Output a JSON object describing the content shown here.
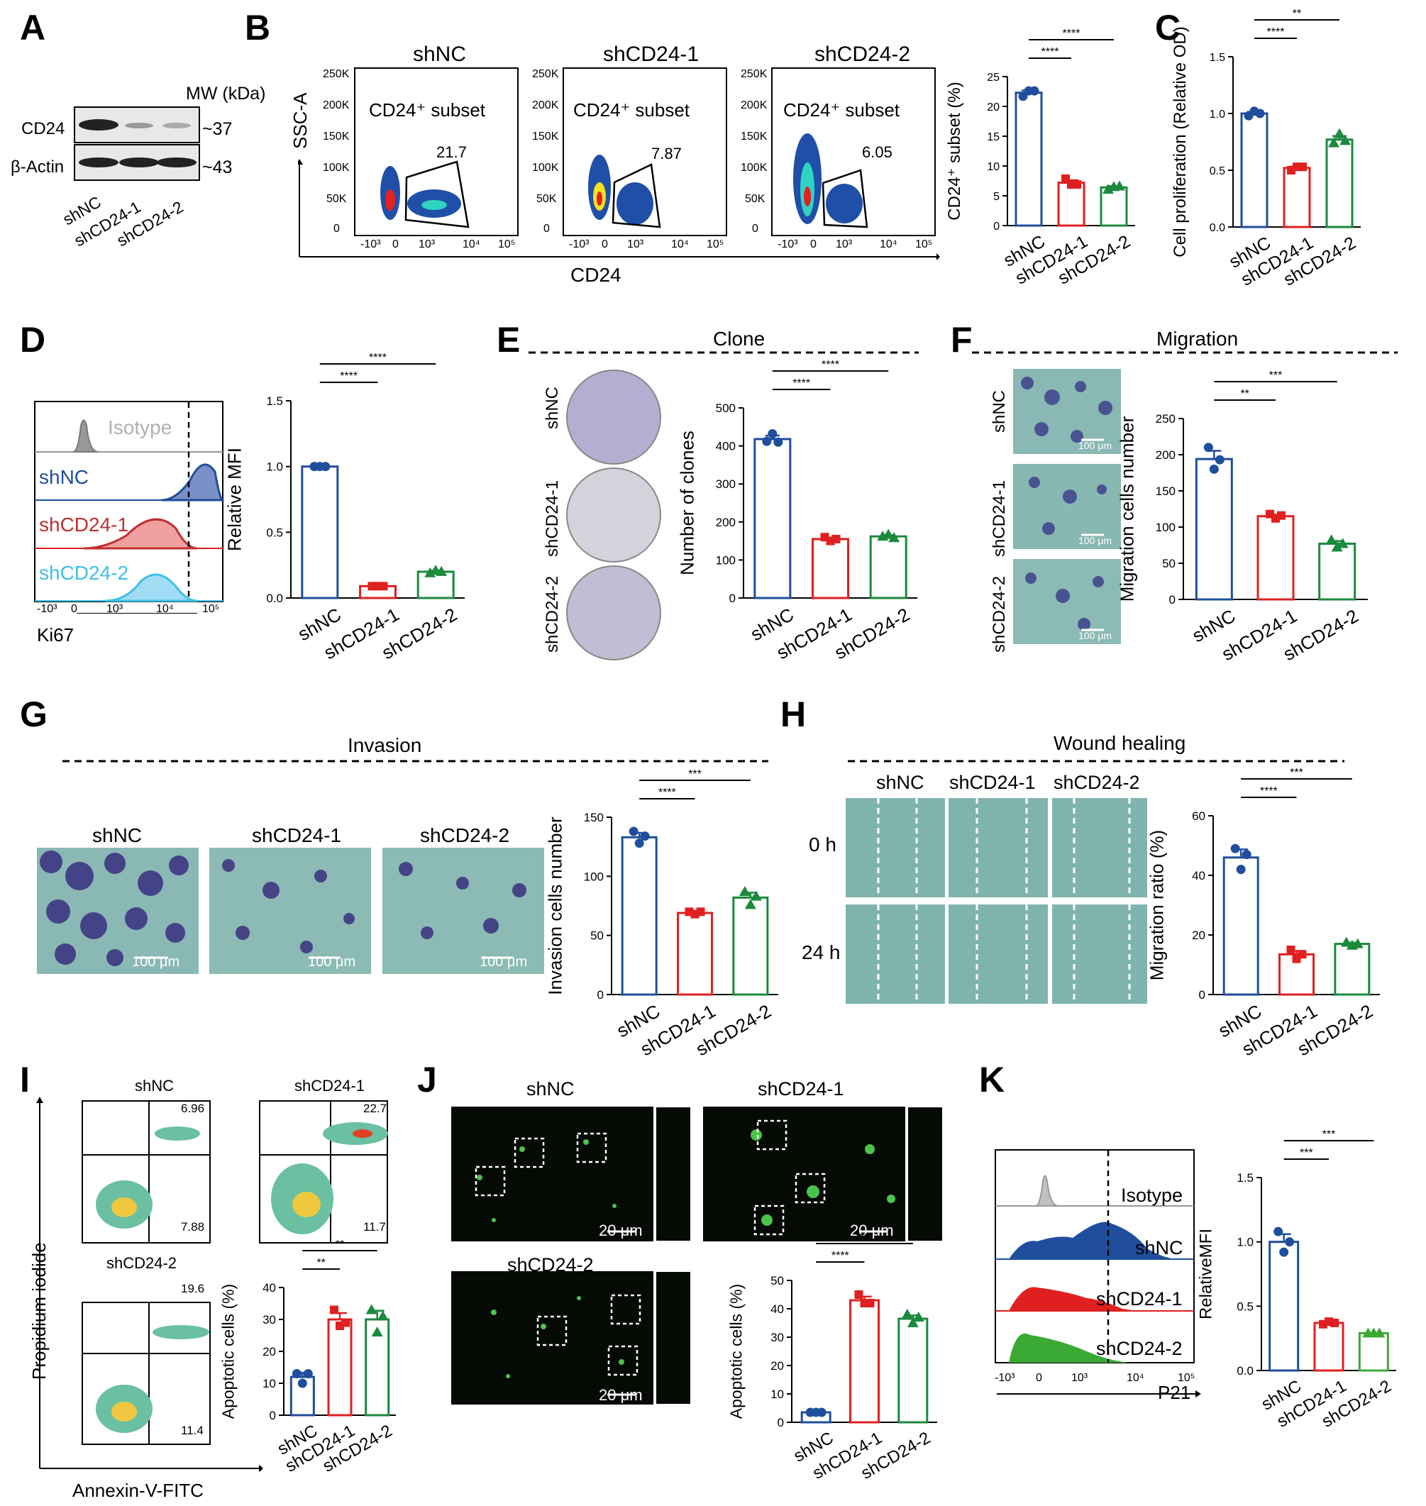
{
  "panels": {
    "A": {
      "letter": "A",
      "mw_label": "MW (kDa)",
      "rows": [
        {
          "name": "CD24",
          "mw": "~37"
        },
        {
          "name": "β-Actin",
          "mw": "~43"
        }
      ],
      "lanes": [
        "shNC",
        "shCD24-1",
        "shCD24-2"
      ]
    },
    "B": {
      "letter": "B",
      "plots": [
        {
          "title": "shNC",
          "gate": "CD24⁺ subset",
          "value": "21.7"
        },
        {
          "title": "shCD24-1",
          "gate": "CD24⁺ subset",
          "value": "7.87"
        },
        {
          "title": "shCD24-2",
          "gate": "CD24⁺ subset",
          "value": "6.05"
        }
      ],
      "y_axis": "SSC-A",
      "x_axis": "CD24",
      "y_ticks": [
        "250K",
        "200K",
        "150K",
        "100K",
        "50K",
        "0"
      ],
      "x_ticks": [
        "-10³",
        "0",
        "10³",
        "10⁴",
        "10⁵"
      ]
    },
    "C": {
      "letter": "C"
    },
    "D": {
      "letter": "D",
      "hist_labels": [
        "Isotype",
        "shNC",
        "shCD24-1",
        "shCD24-2"
      ],
      "x_axis": "Ki67",
      "x_ticks": [
        "-10³",
        "0",
        "10³",
        "10⁴",
        "10⁵"
      ]
    },
    "E": {
      "letter": "E",
      "header": "Clone",
      "row_labels": [
        "shNC",
        "shCD24-1",
        "shCD24-2"
      ]
    },
    "F": {
      "letter": "F",
      "header": "Migration",
      "row_labels": [
        "shNC",
        "shCD24-1",
        "shCD24-2"
      ],
      "scale": "100 μm"
    },
    "G": {
      "letter": "G",
      "header": "Invasion",
      "col_labels": [
        "shNC",
        "shCD24-1",
        "shCD24-2"
      ],
      "scale": "100 μm"
    },
    "H": {
      "letter": "H",
      "header": "Wound healing",
      "col_labels": [
        "shNC",
        "shCD24-1",
        "shCD24-2"
      ],
      "row_labels": [
        "0 h",
        "24 h"
      ]
    },
    "I": {
      "letter": "I",
      "plots": [
        {
          "title": "shNC",
          "ur": "6.96",
          "lr": "7.88"
        },
        {
          "title": "shCD24-1",
          "ur": "22.7",
          "lr": "11.7"
        },
        {
          "title": "shCD24-2",
          "ur": "19.6",
          "lr": "11.4"
        }
      ],
      "y_axis": "Propidium iodide",
      "x_axis": "Annexin-V-FITC"
    },
    "J": {
      "letter": "J",
      "titles": [
        "shNC",
        "shCD24-1",
        "shCD24-2"
      ],
      "scale": "20 μm"
    },
    "K": {
      "letter": "K",
      "hist_labels": [
        "Isotype",
        "shNC",
        "shCD24-1",
        "shCD24-2"
      ],
      "x_axis": "P21",
      "x_ticks": [
        "-10³",
        "0",
        "10³",
        "10⁴",
        "10⁵"
      ]
    }
  },
  "colors": {
    "shNC": "#1f4e9c",
    "shCD24-1": "#e02020",
    "shCD24-2": "#1a8a3c",
    "shCD24-2_K": "#3aaa35",
    "Isotype": "#999999"
  },
  "chart_data": [
    {
      "id": "B-bar",
      "type": "bar",
      "categories": [
        "shNC",
        "shCD24-1",
        "shCD24-2"
      ],
      "values": [
        22.3,
        7.2,
        6.4
      ],
      "ylabel": "CD24⁺ subset (%)",
      "ylim": [
        0,
        25
      ],
      "yticks": [
        0,
        5,
        10,
        15,
        20,
        25
      ],
      "points": [
        [
          21.7,
          22.6,
          22.6
        ],
        [
          7.87,
          6.9,
          6.9
        ],
        [
          6.05,
          6.5,
          6.6
        ]
      ],
      "sig": [
        {
          "from": 0,
          "to": 1,
          "label": "****"
        },
        {
          "from": 0,
          "to": 2,
          "label": "****"
        }
      ]
    },
    {
      "id": "C-bar",
      "type": "bar",
      "categories": [
        "shNC",
        "shCD24-1",
        "shCD24-2"
      ],
      "values": [
        1.0,
        0.52,
        0.77
      ],
      "ylabel": "Cell proliferation (Relative OD)",
      "ylim": [
        0,
        1.5
      ],
      "yticks": [
        0.0,
        0.5,
        1.0,
        1.5
      ],
      "points": [
        [
          0.98,
          1.02,
          1.0
        ],
        [
          0.5,
          0.53,
          0.53
        ],
        [
          0.74,
          0.82,
          0.76
        ]
      ],
      "sig": [
        {
          "from": 0,
          "to": 1,
          "label": "****"
        },
        {
          "from": 0,
          "to": 2,
          "label": "**"
        }
      ]
    },
    {
      "id": "D-bar",
      "type": "bar",
      "categories": [
        "shNC",
        "shCD24-1",
        "shCD24-2"
      ],
      "values": [
        1.0,
        0.09,
        0.2
      ],
      "ylabel": "Relative MFI",
      "ylim": [
        0,
        1.5
      ],
      "yticks": [
        0.0,
        0.5,
        1.0,
        1.5
      ],
      "points": [
        [
          1.0,
          1.0,
          1.0
        ],
        [
          0.09,
          0.09,
          0.09
        ],
        [
          0.19,
          0.21,
          0.2
        ]
      ],
      "sig": [
        {
          "from": 0,
          "to": 1,
          "label": "****"
        },
        {
          "from": 0,
          "to": 2,
          "label": "****"
        }
      ]
    },
    {
      "id": "E-bar",
      "type": "bar",
      "categories": [
        "shNC",
        "shCD24-1",
        "shCD24-2"
      ],
      "values": [
        418,
        155,
        162
      ],
      "ylabel": "Number of clones",
      "ylim": [
        0,
        500
      ],
      "yticks": [
        0,
        100,
        200,
        300,
        400,
        500
      ],
      "points": [
        [
          412,
          432,
          410
        ],
        [
          160,
          150,
          155
        ],
        [
          162,
          167,
          158
        ]
      ],
      "sig": [
        {
          "from": 0,
          "to": 1,
          "label": "****"
        },
        {
          "from": 0,
          "to": 2,
          "label": "****"
        }
      ]
    },
    {
      "id": "F-bar",
      "type": "bar",
      "categories": [
        "shNC",
        "shCD24-1",
        "shCD24-2"
      ],
      "values": [
        194,
        115,
        77
      ],
      "ylabel": "Migration cells number",
      "ylim": [
        0,
        250
      ],
      "yticks": [
        0,
        50,
        100,
        150,
        200,
        250
      ],
      "points": [
        [
          210,
          180,
          193
        ],
        [
          118,
          112,
          116
        ],
        [
          82,
          72,
          77
        ]
      ],
      "sig": [
        {
          "from": 0,
          "to": 1,
          "label": "**"
        },
        {
          "from": 0,
          "to": 2,
          "label": "***"
        }
      ]
    },
    {
      "id": "G-bar",
      "type": "bar",
      "categories": [
        "shNC",
        "shCD24-1",
        "shCD24-2"
      ],
      "values": [
        133,
        69,
        82
      ],
      "ylabel": "Invasion cells number",
      "ylim": [
        0,
        150
      ],
      "yticks": [
        0,
        50,
        100,
        150
      ],
      "points": [
        [
          138,
          128,
          134
        ],
        [
          70,
          68,
          70
        ],
        [
          87,
          76,
          83
        ]
      ],
      "sig": [
        {
          "from": 0,
          "to": 1,
          "label": "****"
        },
        {
          "from": 0,
          "to": 2,
          "label": "***"
        }
      ]
    },
    {
      "id": "H-bar",
      "type": "bar",
      "categories": [
        "shNC",
        "shCD24-1",
        "shCD24-2"
      ],
      "values": [
        46,
        13.5,
        17
      ],
      "ylabel": "Migration ratio (%)",
      "ylim": [
        0,
        60
      ],
      "yticks": [
        0,
        20,
        40,
        60
      ],
      "points": [
        [
          49,
          42,
          47
        ],
        [
          15,
          12,
          13.5
        ],
        [
          17.5,
          16.5,
          17
        ]
      ],
      "sig": [
        {
          "from": 0,
          "to": 1,
          "label": "****"
        },
        {
          "from": 0,
          "to": 2,
          "label": "***"
        }
      ]
    },
    {
      "id": "I-bar",
      "type": "bar",
      "categories": [
        "shNC",
        "shCD24-1",
        "shCD24-2"
      ],
      "values": [
        12,
        30,
        30
      ],
      "ylabel": "Apoptotic cells (%)",
      "ylim": [
        0,
        40
      ],
      "yticks": [
        0,
        10,
        20,
        30,
        40
      ],
      "points": [
        [
          13,
          10,
          13
        ],
        [
          33,
          28,
          29
        ],
        [
          33,
          26,
          31
        ]
      ],
      "sig": [
        {
          "from": 0,
          "to": 1,
          "label": "**"
        },
        {
          "from": 0,
          "to": 2,
          "label": "**"
        }
      ]
    },
    {
      "id": "J-bar",
      "type": "bar",
      "categories": [
        "shNC",
        "shCD24-1",
        "shCD24-2"
      ],
      "values": [
        3.5,
        43,
        36.5
      ],
      "ylabel": "Apoptotic cells (%)",
      "ylim": [
        0,
        50
      ],
      "yticks": [
        0,
        10,
        20,
        30,
        40,
        50
      ],
      "points": [
        [
          3.5,
          3.5,
          3.5
        ],
        [
          45,
          42,
          42
        ],
        [
          38,
          35,
          37
        ]
      ],
      "sig": [
        {
          "from": 0,
          "to": 1,
          "label": "****"
        },
        {
          "from": 0,
          "to": 2,
          "label": "****"
        }
      ]
    },
    {
      "id": "K-bar",
      "type": "bar",
      "categories": [
        "shNC",
        "shCD24-1",
        "shCD24-2"
      ],
      "values": [
        1.0,
        0.37,
        0.29
      ],
      "ylabel": "RelativeMFI",
      "ylim": [
        0,
        1.5
      ],
      "yticks": [
        0.0,
        0.5,
        1.0,
        1.5
      ],
      "points": [
        [
          1.08,
          0.92,
          1.0
        ],
        [
          0.36,
          0.38,
          0.37
        ],
        [
          0.29,
          0.29,
          0.29
        ]
      ],
      "sig": [
        {
          "from": 0,
          "to": 1,
          "label": "***"
        },
        {
          "from": 0,
          "to": 2,
          "label": "***"
        }
      ]
    }
  ]
}
